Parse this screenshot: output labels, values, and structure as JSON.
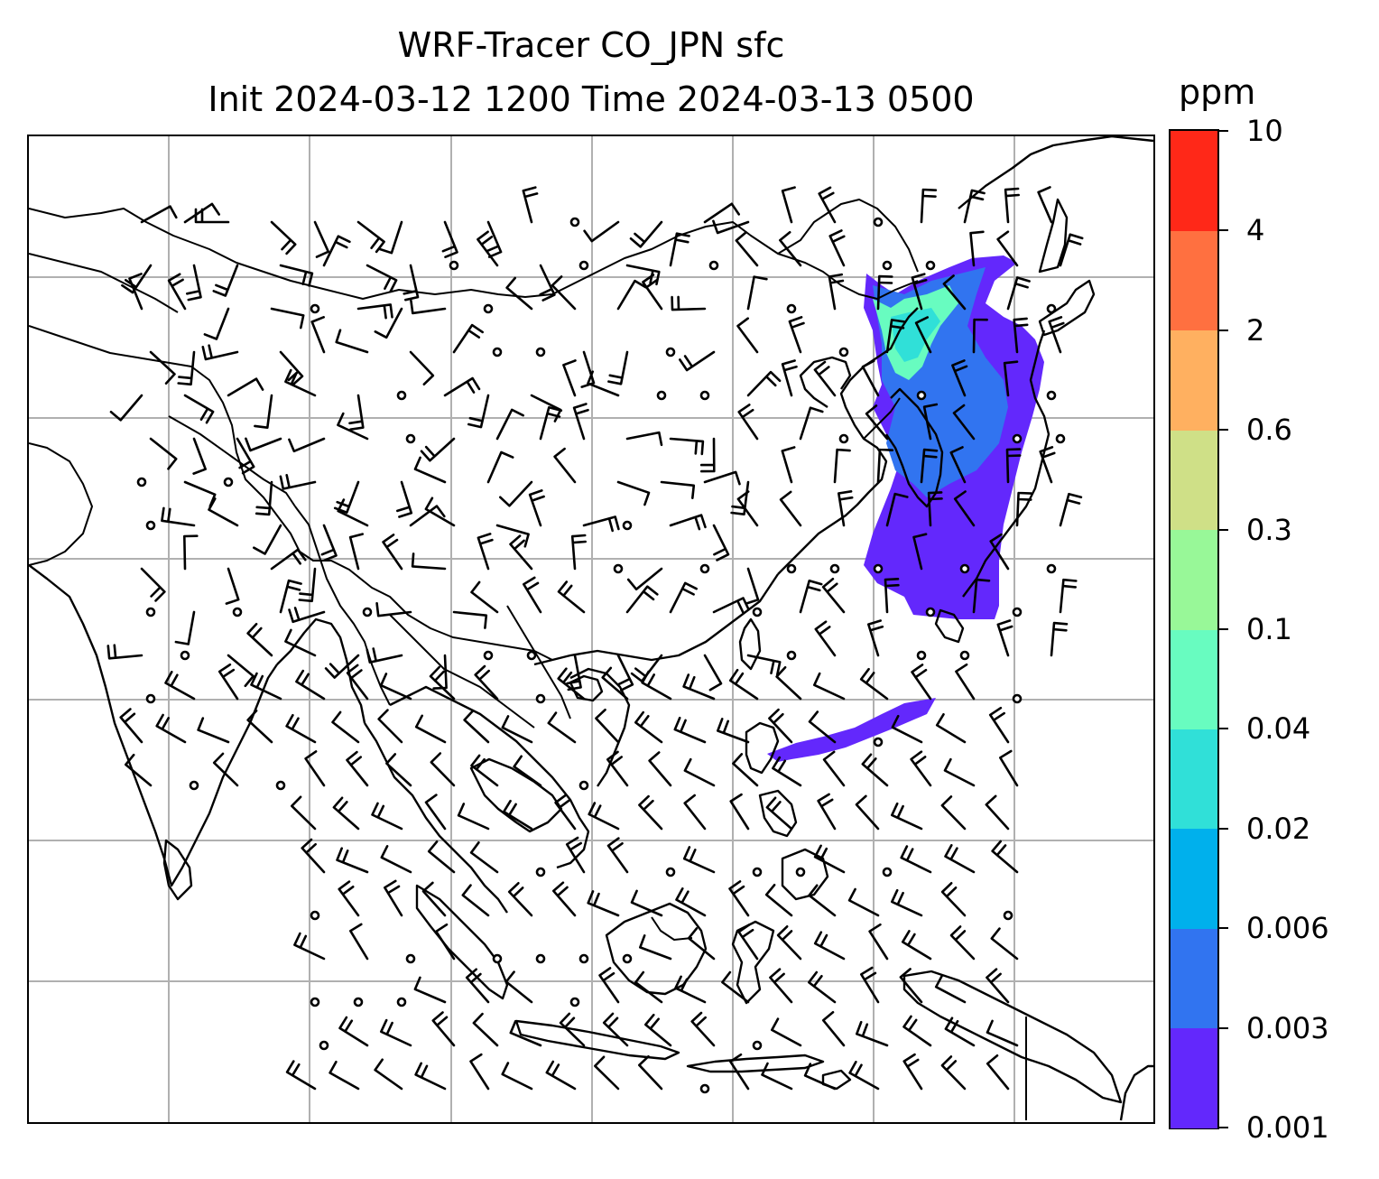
{
  "title": {
    "line1": "WRF-Tracer CO_JPN sfc",
    "line2": "Init 2024-03-12 1200 Time 2024-03-13 0500"
  },
  "colorbar": {
    "units": "ppm",
    "tick_labels": [
      "10",
      "4",
      "2",
      "0.6",
      "0.3",
      "0.1",
      "0.04",
      "0.02",
      "0.006",
      "0.003",
      "0.001"
    ],
    "colors": [
      "#6328fc",
      "#3174f0",
      "#00b0ec",
      "#30e0d8",
      "#68fcc0",
      "#98f898",
      "#cfe087",
      "#ffb060",
      "#ff7040",
      "#ff2818"
    ]
  },
  "map": {
    "variable": "CO tracer concentration at surface",
    "overlays": [
      "coastlines",
      "country-borders",
      "gridlines",
      "wind-barbs"
    ],
    "gridlines": "on",
    "plume_color_low": "#6328fc"
  }
}
